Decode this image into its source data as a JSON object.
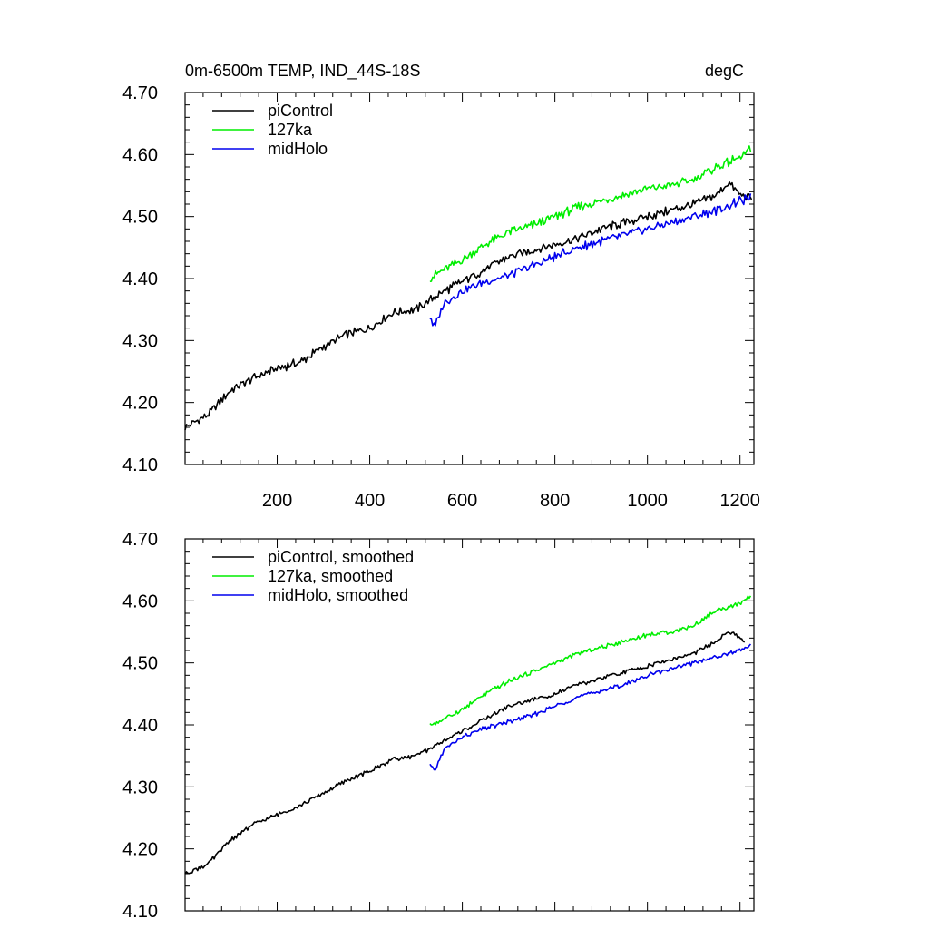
{
  "chart_data": [
    {
      "type": "line",
      "title": "0m-6500m TEMP, IND_44S-18S",
      "units_label": "degC",
      "xlim": [
        1,
        1230
      ],
      "ylim": [
        4.1,
        4.7
      ],
      "yticks": [
        "4.10",
        "4.20",
        "4.30",
        "4.40",
        "4.50",
        "4.60",
        "4.70"
      ],
      "xticks": [
        "200",
        "400",
        "600",
        "800",
        "1000",
        "1200"
      ],
      "legend": "top-left",
      "series": [
        {
          "name": "piControl",
          "color": "#000000",
          "x": [
            1,
            50,
            100,
            150,
            200,
            250,
            300,
            350,
            400,
            450,
            500,
            550,
            600,
            650,
            700,
            750,
            800,
            850,
            900,
            950,
            1000,
            1050,
            1100,
            1150,
            1175,
            1200,
            1225
          ],
          "y": [
            4.16,
            4.18,
            4.22,
            4.24,
            4.255,
            4.265,
            4.29,
            4.31,
            4.32,
            4.345,
            4.35,
            4.375,
            4.395,
            4.415,
            4.435,
            4.445,
            4.455,
            4.465,
            4.48,
            4.49,
            4.5,
            4.51,
            4.52,
            4.535,
            4.555,
            4.535,
            4.53
          ]
        },
        {
          "name": "127ka",
          "color": "#00ee00",
          "x": [
            530,
            550,
            600,
            650,
            700,
            750,
            800,
            850,
            900,
            950,
            1000,
            1050,
            1100,
            1150,
            1200,
            1225
          ],
          "y": [
            4.4,
            4.41,
            4.43,
            4.455,
            4.475,
            4.485,
            4.5,
            4.515,
            4.525,
            4.535,
            4.545,
            4.55,
            4.56,
            4.58,
            4.595,
            4.61
          ]
        },
        {
          "name": "midHolo",
          "color": "#0000ee",
          "x": [
            530,
            540,
            560,
            600,
            650,
            700,
            750,
            800,
            850,
            900,
            950,
            1000,
            1050,
            1100,
            1150,
            1200,
            1225
          ],
          "y": [
            4.34,
            4.32,
            4.36,
            4.38,
            4.395,
            4.405,
            4.42,
            4.435,
            4.45,
            4.46,
            4.47,
            4.48,
            4.49,
            4.5,
            4.51,
            4.525,
            4.53
          ]
        }
      ]
    },
    {
      "type": "line",
      "xlim": [
        1,
        1230
      ],
      "ylim": [
        4.1,
        4.7
      ],
      "yticks": [
        "4.10",
        "4.20",
        "4.30",
        "4.40",
        "4.50",
        "4.60",
        "4.70"
      ],
      "legend": "top-left",
      "series": [
        {
          "name": "piControl, smoothed",
          "color": "#000000",
          "x": [
            1,
            50,
            100,
            150,
            200,
            250,
            300,
            350,
            400,
            450,
            500,
            550,
            600,
            650,
            700,
            750,
            800,
            850,
            900,
            950,
            1000,
            1050,
            1100,
            1150,
            1175,
            1200,
            1210
          ],
          "y": [
            4.16,
            4.175,
            4.215,
            4.24,
            4.255,
            4.27,
            4.29,
            4.31,
            4.325,
            4.345,
            4.35,
            4.37,
            4.39,
            4.41,
            4.43,
            4.44,
            4.45,
            4.465,
            4.475,
            4.485,
            4.495,
            4.505,
            4.515,
            4.535,
            4.55,
            4.54,
            4.535
          ]
        },
        {
          "name": "127ka, smoothed",
          "color": "#00ee00",
          "x": [
            530,
            550,
            600,
            650,
            700,
            750,
            800,
            850,
            900,
            950,
            1000,
            1050,
            1100,
            1150,
            1200,
            1225
          ],
          "y": [
            4.4,
            4.405,
            4.425,
            4.45,
            4.47,
            4.485,
            4.5,
            4.515,
            4.525,
            4.535,
            4.545,
            4.55,
            4.56,
            4.585,
            4.595,
            4.61
          ]
        },
        {
          "name": "midHolo, smoothed",
          "color": "#0000ee",
          "x": [
            530,
            540,
            560,
            600,
            650,
            700,
            750,
            800,
            850,
            900,
            950,
            1000,
            1050,
            1100,
            1150,
            1200,
            1225
          ],
          "y": [
            4.335,
            4.325,
            4.36,
            4.38,
            4.395,
            4.405,
            4.415,
            4.43,
            4.445,
            4.455,
            4.465,
            4.48,
            4.49,
            4.5,
            4.51,
            4.52,
            4.53
          ]
        }
      ]
    }
  ]
}
